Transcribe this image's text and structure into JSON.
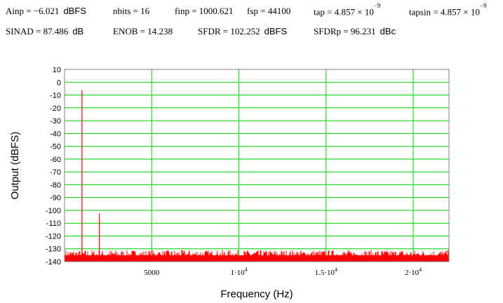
{
  "params": {
    "row1": [
      {
        "id": "ainp",
        "label": "Ainp",
        "value": "−6.021",
        "unit": "dBFS"
      },
      {
        "id": "nbits",
        "label": "nbits",
        "value": "16",
        "unit": ""
      },
      {
        "id": "finp",
        "label": "finp",
        "value": "1000.621",
        "unit": ""
      },
      {
        "id": "fsp",
        "label": "fsp",
        "value": "44100",
        "unit": ""
      },
      {
        "id": "tap",
        "label": "tap",
        "value": "4.857 × 10",
        "exp": "−9",
        "unit": ""
      },
      {
        "id": "tapsin",
        "label": "tapsin",
        "value": "4.857 × 10",
        "exp": "−9",
        "unit": ""
      }
    ],
    "row2": [
      {
        "id": "sinad",
        "label": "SINAD",
        "value": "87.486",
        "unit": "dB"
      },
      {
        "id": "enob",
        "label": "ENOB",
        "value": "14.238",
        "unit": ""
      },
      {
        "id": "sfdr",
        "label": "SFDR",
        "value": "102.252",
        "unit": "dBFS"
      },
      {
        "id": "sfdrp",
        "label": "SFDRp",
        "value": "96.231",
        "unit": "dBc"
      }
    ]
  },
  "chart_data": {
    "type": "line",
    "xlabel": "Frequency (Hz)",
    "ylabel": "Output (dBFS)",
    "xlim": [
      0,
      22050
    ],
    "ylim": [
      -140,
      10
    ],
    "yticks": [
      10,
      0,
      -10,
      -20,
      -30,
      -40,
      -50,
      -60,
      -70,
      -80,
      -90,
      -100,
      -110,
      -120,
      -130,
      -140
    ],
    "xticks": [
      {
        "value": 5000,
        "base": "5000",
        "exp": ""
      },
      {
        "value": 10000,
        "base": "1·10",
        "exp": "4"
      },
      {
        "value": 15000,
        "base": "1.5·10",
        "exp": "4"
      },
      {
        "value": 20000,
        "base": "2·10",
        "exp": "4"
      }
    ],
    "grid": true,
    "grid_color": "#00cc00",
    "series_color": "#ff0000",
    "noise_floor": {
      "min": -138,
      "max": -131
    },
    "peaks": [
      {
        "x": 1000.6,
        "y": -6.0
      },
      {
        "x": 2001.2,
        "y": -102.3
      }
    ]
  }
}
